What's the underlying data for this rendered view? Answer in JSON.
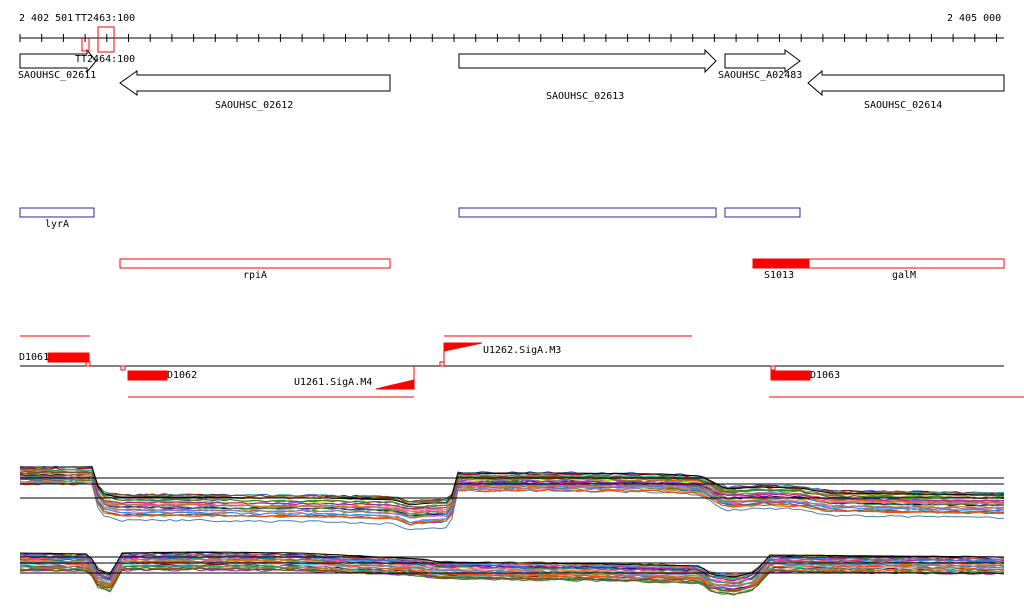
{
  "ruler": {
    "start_label": "2 402 501",
    "end_label": "2 405 000"
  },
  "colors": {
    "gene": "#000000",
    "operon": "#2a2aa0",
    "region": "#ff0000",
    "track_black": "#000000"
  },
  "genes": [
    {
      "label": "SAOUHSC_02611",
      "strand": "+"
    },
    {
      "label": "SAOUHSC_02612",
      "strand": "-"
    },
    {
      "label": "SAOUHSC_02613",
      "strand": "+"
    },
    {
      "label": "SAOUHSC_A02483",
      "strand": "+"
    },
    {
      "label": "SAOUHSC_02614",
      "strand": "-"
    }
  ],
  "terminators": [
    {
      "label": "TT2463:100"
    },
    {
      "label": "TT2464:100"
    }
  ],
  "operons": [
    {
      "label": "lyrA"
    },
    {
      "label": ""
    },
    {
      "label": ""
    }
  ],
  "red_features": [
    {
      "label": "rpiA"
    },
    {
      "label": "galM"
    },
    {
      "label": "S1013"
    }
  ],
  "segments": [
    {
      "label": "D1061"
    },
    {
      "label": "D1062"
    },
    {
      "label": "U1261.SigA.M4"
    },
    {
      "label": "U1262.SigA.M3"
    },
    {
      "label": "D1063"
    }
  ],
  "expression_tracks": {
    "series_count": 30,
    "series_colors": [
      "#e6194b",
      "#3cb44b",
      "#4363d8",
      "#f58231",
      "#911eb4",
      "#46f0f0",
      "#f032e6",
      "#bcf60c",
      "#fabebe",
      "#008080",
      "#9a6324",
      "#800000",
      "#808000",
      "#000075",
      "#808080",
      "#ff7f50",
      "#6a5acd",
      "#228b22",
      "#b8860b",
      "#cd5c5c",
      "#20b2aa",
      "#9370db",
      "#2e8b57",
      "#d2691e",
      "#4682b4",
      "#c71585",
      "#556b2f",
      "#ff4500",
      "#1e90ff",
      "#8b4513"
    ]
  }
}
